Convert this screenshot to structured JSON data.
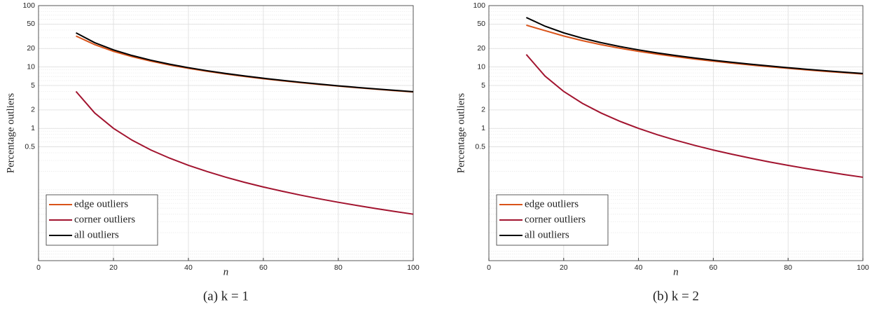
{
  "chart_data": [
    {
      "type": "line",
      "caption": "(a) k = 1",
      "xlabel": "n",
      "ylabel": "Percentage outliers",
      "x": [
        10,
        15,
        20,
        25,
        30,
        35,
        40,
        45,
        50,
        55,
        60,
        65,
        70,
        75,
        80,
        85,
        90,
        95,
        100
      ],
      "series": [
        {
          "name": "edge outliers",
          "color": "#D95319",
          "values": [
            32,
            23.111,
            18,
            14.72,
            12.444,
            10.776,
            9.5,
            8.494,
            7.68,
            7.008,
            6.444,
            5.964,
            5.551,
            5.191,
            4.875,
            4.595,
            4.346,
            4.122,
            3.92
          ]
        },
        {
          "name": "corner outliers",
          "color": "#A2142F",
          "values": [
            4,
            1.778,
            1,
            0.64,
            0.444,
            0.327,
            0.25,
            0.198,
            0.16,
            0.132,
            0.111,
            0.0947,
            0.0816,
            0.0711,
            0.0625,
            0.0554,
            0.0494,
            0.0443,
            0.04
          ]
        },
        {
          "name": "all outliers",
          "color": "#000000",
          "values": [
            36,
            24.889,
            19,
            15.36,
            12.889,
            11.102,
            9.75,
            8.691,
            7.84,
            7.14,
            6.556,
            6.059,
            5.633,
            5.262,
            4.938,
            4.651,
            4.395,
            4.166,
            3.96
          ]
        }
      ],
      "xlim": [
        0,
        100
      ],
      "xticks": [
        0,
        20,
        40,
        60,
        80,
        100
      ],
      "ylim": [
        0.007,
        100
      ],
      "yticks": [
        0.5,
        1,
        2,
        5,
        10,
        20,
        50,
        100
      ],
      "yscale": "log",
      "grid": true,
      "legend": "lower left"
    },
    {
      "type": "line",
      "caption": "(b) k = 2",
      "xlabel": "n",
      "ylabel": "Percentage outliers",
      "x": [
        10,
        15,
        20,
        25,
        30,
        35,
        40,
        45,
        50,
        55,
        60,
        65,
        70,
        75,
        80,
        85,
        90,
        95,
        100
      ],
      "series": [
        {
          "name": "edge outliers",
          "color": "#D95319",
          "values": [
            48,
            39.111,
            32,
            26.88,
            23.111,
            20.245,
            18,
            16.198,
            14.72,
            13.488,
            12.444,
            11.55,
            10.776,
            10.098,
            9.5,
            8.969,
            8.494,
            8.066,
            7.68
          ]
        },
        {
          "name": "corner outliers",
          "color": "#A2142F",
          "values": [
            16,
            7.111,
            4,
            2.56,
            1.778,
            1.306,
            1,
            0.79,
            0.64,
            0.529,
            0.444,
            0.379,
            0.327,
            0.284,
            0.25,
            0.221,
            0.198,
            0.177,
            0.16
          ]
        },
        {
          "name": "all outliers",
          "color": "#000000",
          "values": [
            64,
            46.222,
            36,
            29.44,
            24.889,
            21.551,
            19,
            16.988,
            15.36,
            14.017,
            12.888,
            11.929,
            11.103,
            10.382,
            9.75,
            9.19,
            8.692,
            8.243,
            7.84
          ]
        }
      ],
      "xlim": [
        0,
        100
      ],
      "xticks": [
        0,
        20,
        40,
        60,
        80,
        100
      ],
      "ylim": [
        0.007,
        100
      ],
      "yticks": [
        0.5,
        1,
        2,
        5,
        10,
        20,
        50,
        100
      ],
      "yscale": "log",
      "grid": true,
      "legend": "lower left"
    }
  ]
}
